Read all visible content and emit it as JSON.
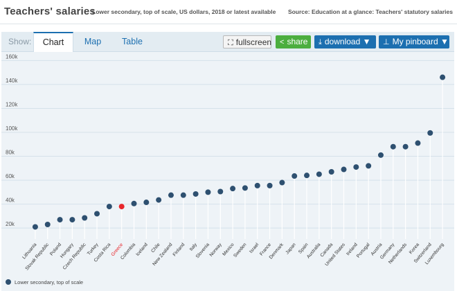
{
  "header": {
    "title": "Teachers' salaries",
    "subtitle": "Lower secondary, top of scale, US dollars, 2018 or latest available",
    "source": "Source: Education at a glance: Teachers' statutory salaries"
  },
  "toolbar": {
    "show_label": "Show:",
    "tabs": [
      {
        "label": "Chart",
        "active": true
      },
      {
        "label": "Map",
        "active": false
      },
      {
        "label": "Table",
        "active": false
      }
    ],
    "fullscreen_label": "fullscreen",
    "share_label": "share",
    "download_label": "download ▼",
    "pinboard_label": "My pinboard ▼",
    "icons": {
      "fullscreen": "expand-icon",
      "share": "share-icon",
      "download": "download-icon",
      "pinboard": "pin-icon"
    }
  },
  "colors": {
    "series": "#2e5070",
    "highlight": "#e8262b",
    "stem": "#ffffff",
    "grid": "#d5e1ea",
    "accent": "#1c6fb0",
    "share": "#4cae3f"
  },
  "legend": {
    "label": "Lower secondary, top of scale"
  },
  "chart_data": {
    "type": "scatter",
    "style": "lollipop",
    "categories": [
      "Lithuania",
      "Slovak Republic",
      "Poland",
      "Hungary",
      "Czech Republic",
      "Turkey",
      "Costa Rica",
      "Greece",
      "Colombia",
      "Iceland",
      "Chile",
      "New Zealand",
      "Finland",
      "Italy",
      "Slovenia",
      "Norway",
      "Mexico",
      "Sweden",
      "Israel",
      "France",
      "Denmark",
      "Japan",
      "Spain",
      "Australia",
      "Canada",
      "United States",
      "Ireland",
      "Portugal",
      "Austria",
      "Germany",
      "Netherlands",
      "Korea",
      "Switzerland",
      "Luxembourg"
    ],
    "series": [
      {
        "name": "Lower secondary, top of scale",
        "values": [
          21,
          23,
          27,
          27,
          28.5,
          32,
          38,
          38,
          40.5,
          41.5,
          43.5,
          47.5,
          47.5,
          48.5,
          50,
          50.5,
          53,
          53.5,
          55.5,
          55.5,
          58,
          63.5,
          64,
          65,
          67,
          69,
          71,
          72,
          81,
          88,
          88,
          91,
          99.5,
          146
        ]
      }
    ],
    "highlight": [
      "Greece"
    ],
    "ylim": [
      12,
      166
    ],
    "yticks": [
      "20k",
      "40k",
      "60k",
      "80k",
      "100k",
      "120k",
      "140k",
      "160k"
    ],
    "ytick_values": [
      20,
      40,
      60,
      80,
      100,
      120,
      140,
      160
    ],
    "grid": true,
    "legend_position": "bottom-left",
    "xlabel": "",
    "ylabel": ""
  }
}
